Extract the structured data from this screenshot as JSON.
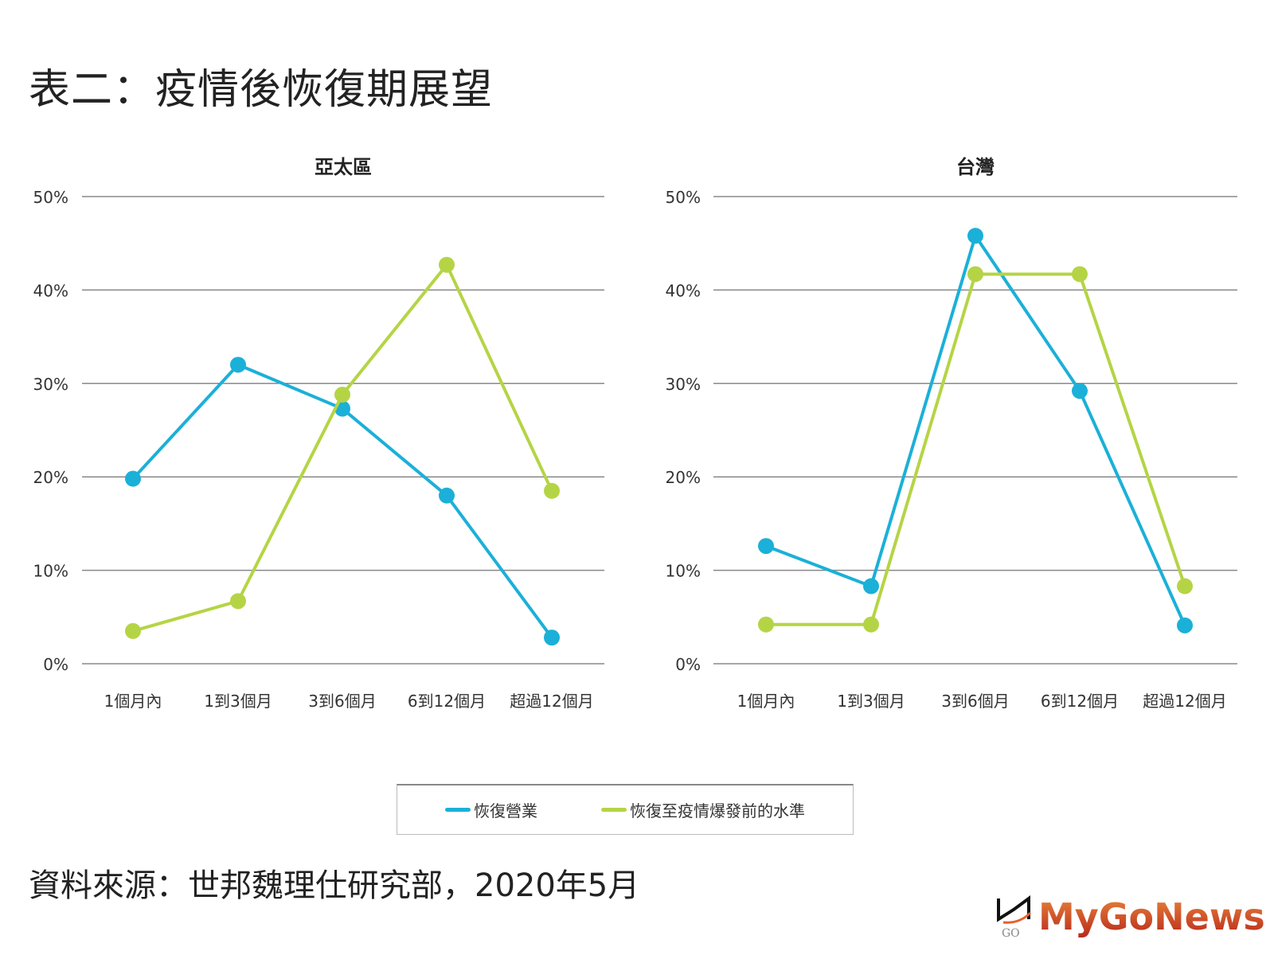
{
  "title": "表二：疫情後恢復期展望",
  "source": "資料來源：世邦魏理仕研究部，2020年5月",
  "logo": "MyGoNews",
  "colors": {
    "series1": "#1bb0d8",
    "series2": "#b5d445",
    "grid": "#888888"
  },
  "legend": [
    "恢復營業",
    "恢復至疫情爆發前的水準"
  ],
  "chart_data": [
    {
      "type": "line",
      "title": "亞太區",
      "categories": [
        "1個月內",
        "1到3個月",
        "3到6個月",
        "6到12個月",
        "超過12個月"
      ],
      "yticks": [
        "0%",
        "10%",
        "20%",
        "30%",
        "40%",
        "50%"
      ],
      "ylim": [
        0,
        50
      ],
      "grid": true,
      "legend_position": "bottom",
      "series": [
        {
          "name": "恢復營業",
          "values": [
            19.8,
            32.0,
            27.3,
            18.0,
            2.8
          ]
        },
        {
          "name": "恢復至疫情爆發前的水準",
          "values": [
            3.5,
            6.7,
            28.8,
            42.7,
            18.5
          ]
        }
      ]
    },
    {
      "type": "line",
      "title": "台灣",
      "categories": [
        "1個月內",
        "1到3個月",
        "3到6個月",
        "6到12個月",
        "超過12個月"
      ],
      "yticks": [
        "0%",
        "10%",
        "20%",
        "30%",
        "40%",
        "50%"
      ],
      "ylim": [
        0,
        50
      ],
      "grid": true,
      "legend_position": "bottom",
      "series": [
        {
          "name": "恢復營業",
          "values": [
            12.6,
            8.3,
            45.8,
            29.2,
            4.1
          ]
        },
        {
          "name": "恢復至疫情爆發前的水準",
          "values": [
            4.2,
            4.2,
            41.7,
            41.7,
            8.3
          ]
        }
      ]
    }
  ]
}
